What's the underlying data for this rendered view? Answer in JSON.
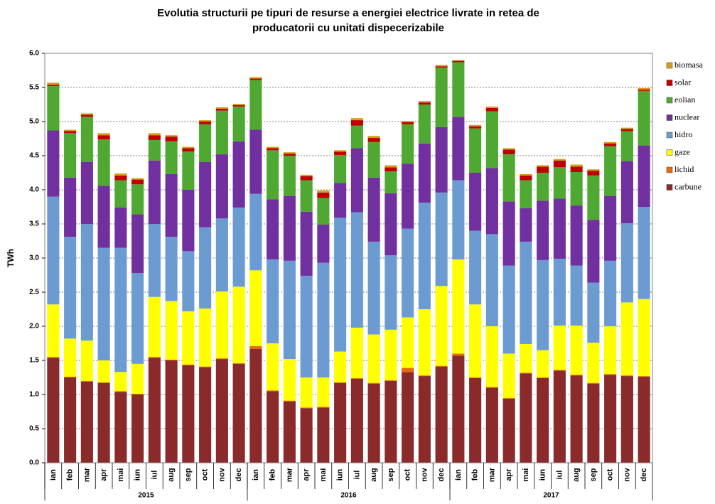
{
  "chart_data": {
    "type": "stacked-bar",
    "title": "Evolutia structurii pe tipuri de resurse a energiei electrice livrate in retea de producatorii cu unitati dispecerizabile",
    "y_label": "TWh",
    "categories": [
      "ian",
      "feb",
      "mar",
      "apr",
      "mai",
      "iun",
      "iul",
      "aug",
      "sep",
      "oct",
      "nov",
      "dec",
      "ian",
      "feb",
      "mar",
      "apr",
      "mai",
      "iun",
      "iul",
      "aug",
      "sep",
      "oct",
      "nov",
      "dec",
      "ian",
      "feb",
      "mar",
      "apr",
      "mai",
      "iun",
      "iul",
      "aug",
      "sep",
      "oct",
      "nov",
      "dec"
    ],
    "years": [
      "2015",
      "2016",
      "2017"
    ],
    "ylim": [
      0,
      6
    ],
    "yticks": [
      {
        "value": 0,
        "label": "0.0"
      },
      0.5,
      {
        "value": 1,
        "label": "1.0"
      },
      1.5,
      {
        "value": 2,
        "label": "2.0"
      },
      2.5,
      {
        "value": 3,
        "label": "3.0"
      },
      3.5,
      {
        "value": 4,
        "label": "4.0"
      },
      4.5,
      {
        "value": 5,
        "label": "5.0"
      },
      5.5,
      {
        "value": 6,
        "label": "6.0"
      }
    ],
    "grid": true,
    "legend": "right",
    "series": [
      {
        "name": "carbune",
        "color": "#8B2A2A",
        "values": [
          1.54,
          1.25,
          1.19,
          1.17,
          1.04,
          1.0,
          1.54,
          1.5,
          1.43,
          1.4,
          1.52,
          1.45,
          1.67,
          1.05,
          0.9,
          0.8,
          0.81,
          1.17,
          1.23,
          1.16,
          1.2,
          1.33,
          1.27,
          1.41,
          1.57,
          1.24,
          1.1,
          0.94,
          1.31,
          1.24,
          1.35,
          1.28,
          1.16,
          1.29,
          1.27,
          1.26
        ]
      },
      {
        "name": "lichid",
        "color": "#E46C0A",
        "values": [
          0.01,
          0.01,
          0.01,
          0.01,
          0.01,
          0.01,
          0.01,
          0.01,
          0.01,
          0.01,
          0.01,
          0.01,
          0.04,
          0.01,
          0.01,
          0.01,
          0.01,
          0.01,
          0.01,
          0.01,
          0.01,
          0.06,
          0.01,
          0.01,
          0.03,
          0.01,
          0.01,
          0.01,
          0.01,
          0.01,
          0.01,
          0.01,
          0.01,
          0.01,
          0.01,
          0.01
        ]
      },
      {
        "name": "gaze",
        "color": "#FFFF00",
        "values": [
          0.77,
          0.56,
          0.59,
          0.32,
          0.28,
          0.44,
          0.88,
          0.86,
          0.78,
          0.85,
          0.98,
          1.12,
          1.11,
          0.69,
          0.61,
          0.44,
          0.43,
          0.45,
          0.74,
          0.71,
          0.74,
          0.74,
          0.97,
          1.17,
          1.38,
          1.07,
          0.89,
          0.65,
          0.42,
          0.4,
          0.65,
          0.72,
          0.59,
          0.7,
          1.07,
          1.13
        ]
      },
      {
        "name": "hidro",
        "color": "#6C9BD2",
        "values": [
          1.58,
          1.49,
          1.71,
          1.65,
          1.82,
          1.33,
          1.07,
          0.94,
          0.88,
          1.19,
          1.07,
          1.16,
          1.12,
          1.23,
          1.44,
          1.49,
          1.68,
          1.96,
          1.69,
          1.36,
          1.09,
          1.3,
          1.56,
          1.37,
          1.16,
          1.08,
          1.35,
          1.29,
          1.5,
          1.32,
          0.98,
          0.88,
          0.88,
          0.96,
          1.16,
          1.35
        ]
      },
      {
        "name": "nuclear",
        "color": "#7030A0",
        "values": [
          0.97,
          0.87,
          0.91,
          0.91,
          0.59,
          0.86,
          0.93,
          0.92,
          0.9,
          0.96,
          0.94,
          0.97,
          0.94,
          0.88,
          0.95,
          0.94,
          0.56,
          0.51,
          0.94,
          0.94,
          0.91,
          0.95,
          0.87,
          0.96,
          0.93,
          0.85,
          0.97,
          0.94,
          0.49,
          0.87,
          0.88,
          0.88,
          0.92,
          0.95,
          0.91,
          0.9
        ]
      },
      {
        "name": "eolian",
        "color": "#4FA831",
        "values": [
          0.65,
          0.65,
          0.66,
          0.68,
          0.4,
          0.44,
          0.3,
          0.48,
          0.56,
          0.55,
          0.64,
          0.51,
          0.73,
          0.72,
          0.59,
          0.46,
          0.39,
          0.41,
          0.33,
          0.52,
          0.32,
          0.58,
          0.57,
          0.87,
          0.8,
          0.65,
          0.83,
          0.69,
          0.41,
          0.41,
          0.46,
          0.49,
          0.65,
          0.73,
          0.44,
          0.8
        ]
      },
      {
        "name": "solar",
        "color": "#C00000",
        "values": [
          0.02,
          0.03,
          0.03,
          0.06,
          0.07,
          0.07,
          0.07,
          0.07,
          0.05,
          0.04,
          0.03,
          0.02,
          0.02,
          0.03,
          0.03,
          0.06,
          0.08,
          0.05,
          0.08,
          0.06,
          0.06,
          0.03,
          0.03,
          0.02,
          0.02,
          0.03,
          0.05,
          0.07,
          0.07,
          0.09,
          0.1,
          0.08,
          0.07,
          0.04,
          0.03,
          0.02
        ]
      },
      {
        "name": "biomasa",
        "color": "#D4A017",
        "values": [
          0.03,
          0.02,
          0.02,
          0.03,
          0.03,
          0.02,
          0.03,
          0.02,
          0.02,
          0.02,
          0.02,
          0.02,
          0.02,
          0.02,
          0.02,
          0.02,
          0.03,
          0.02,
          0.03,
          0.03,
          0.03,
          0.02,
          0.02,
          0.02,
          0.01,
          0.02,
          0.02,
          0.02,
          0.02,
          0.02,
          0.02,
          0.03,
          0.02,
          0.02,
          0.02,
          0.02
        ]
      }
    ]
  }
}
